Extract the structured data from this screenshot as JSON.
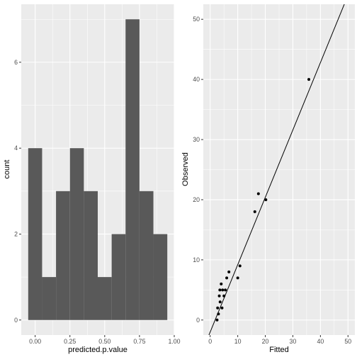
{
  "colors": {
    "panel_bg": "#ebebeb",
    "grid_major": "#ffffff",
    "bar_fill": "#595959",
    "point": "#000000",
    "fit_line": "#000000"
  },
  "chart_data": [
    {
      "type": "bar",
      "geom": "histogram",
      "xlabel": "predicted.p.value",
      "ylabel": "count",
      "bins": [
        {
          "x0": -0.05,
          "x1": 0.05,
          "count": 4
        },
        {
          "x0": 0.05,
          "x1": 0.15,
          "count": 1
        },
        {
          "x0": 0.15,
          "x1": 0.25,
          "count": 3
        },
        {
          "x0": 0.25,
          "x1": 0.35,
          "count": 4
        },
        {
          "x0": 0.35,
          "x1": 0.45,
          "count": 3
        },
        {
          "x0": 0.45,
          "x1": 0.55,
          "count": 1
        },
        {
          "x0": 0.55,
          "x1": 0.65,
          "count": 2
        },
        {
          "x0": 0.65,
          "x1": 0.75,
          "count": 7
        },
        {
          "x0": 0.75,
          "x1": 0.85,
          "count": 3
        },
        {
          "x0": 0.85,
          "x1": 0.95,
          "count": 2
        }
      ],
      "xlim": [
        -0.1,
        1.0
      ],
      "ylim": [
        -0.35,
        7.35
      ],
      "x_ticks": [
        0.0,
        0.25,
        0.5,
        0.75,
        1.0
      ],
      "x_tick_labels": [
        "0.00",
        "0.25",
        "0.50",
        "0.75",
        "1.00"
      ],
      "x_minor": [
        0.125,
        0.375,
        0.625,
        0.875
      ],
      "y_ticks": [
        0,
        2,
        4,
        6
      ],
      "y_tick_labels": [
        "0",
        "2",
        "4",
        "6"
      ],
      "y_minor": [
        1,
        3,
        5,
        7
      ],
      "grid": true
    },
    {
      "type": "scatter",
      "xlabel": "Fitted",
      "ylabel": "Observed",
      "points": [
        {
          "x": 2.5,
          "y": 0
        },
        {
          "x": 2.7,
          "y": 2
        },
        {
          "x": 3.0,
          "y": 1
        },
        {
          "x": 3.3,
          "y": 4
        },
        {
          "x": 3.5,
          "y": 5
        },
        {
          "x": 3.6,
          "y": 3
        },
        {
          "x": 4.0,
          "y": 6
        },
        {
          "x": 4.3,
          "y": 2
        },
        {
          "x": 4.5,
          "y": 5
        },
        {
          "x": 5.0,
          "y": 4
        },
        {
          "x": 5.5,
          "y": 5
        },
        {
          "x": 6.0,
          "y": 7
        },
        {
          "x": 6.8,
          "y": 8
        },
        {
          "x": 10.0,
          "y": 7
        },
        {
          "x": 10.8,
          "y": 9
        },
        {
          "x": 16.2,
          "y": 18
        },
        {
          "x": 17.5,
          "y": 21
        },
        {
          "x": 20.2,
          "y": 20
        },
        {
          "x": 35.8,
          "y": 40
        }
      ],
      "line": {
        "slope": 1.12,
        "intercept": -2.0
      },
      "xlim": [
        -2.5,
        52.5
      ],
      "ylim": [
        -2.5,
        52.5
      ],
      "x_ticks": [
        0,
        10,
        20,
        30,
        40,
        50
      ],
      "x_tick_labels": [
        "0",
        "10",
        "20",
        "30",
        "40",
        "50"
      ],
      "x_minor": [
        5,
        15,
        25,
        35,
        45
      ],
      "y_ticks": [
        0,
        10,
        20,
        30,
        40,
        50
      ],
      "y_tick_labels": [
        "0",
        "10",
        "20",
        "30",
        "40",
        "50"
      ],
      "y_minor": [
        5,
        15,
        25,
        35,
        45
      ],
      "grid": true
    }
  ]
}
